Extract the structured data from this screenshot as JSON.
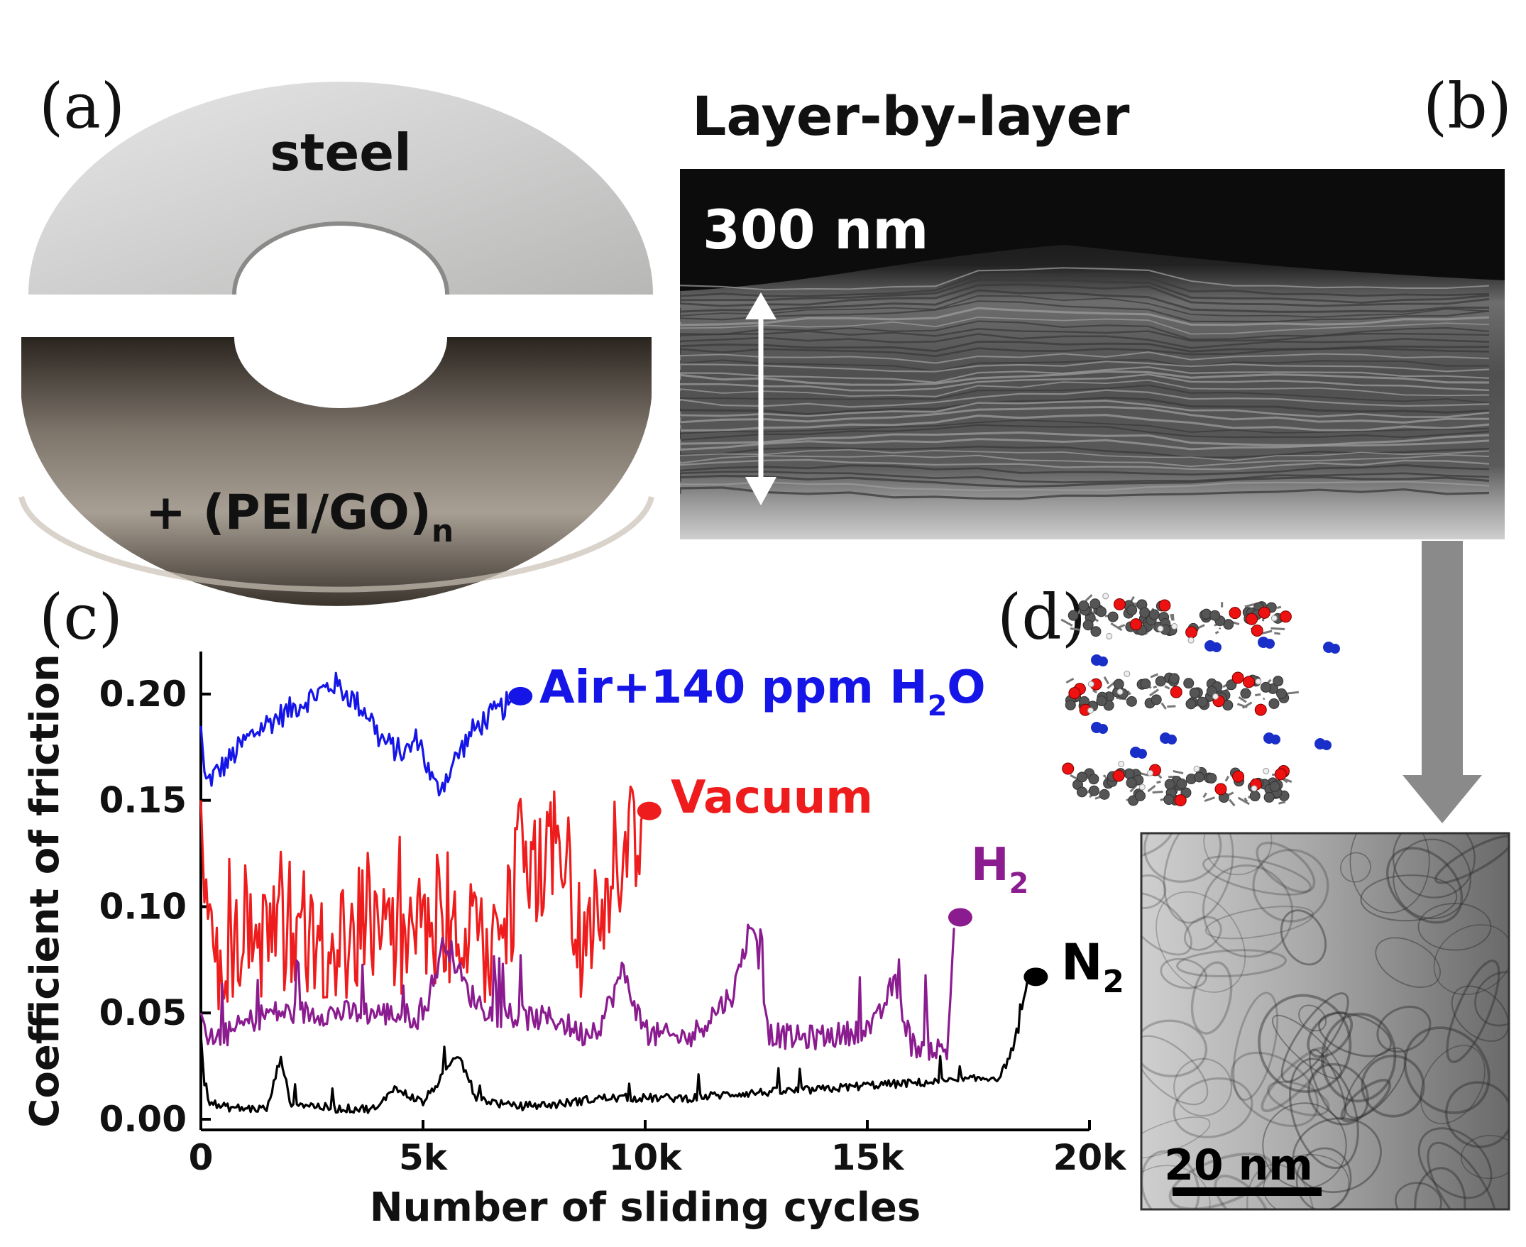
{
  "panels": {
    "a": {
      "letter": "(a)",
      "top_label": "steel",
      "bottom_label_main": "+ (PEI/GO)",
      "bottom_label_sub": "n"
    },
    "b": {
      "letter": "(b)",
      "title": "Layer-by-layer",
      "scale_label": "300 nm"
    },
    "c": {
      "letter": "(c)"
    },
    "d": {
      "letter": "(d)",
      "scale_label": "20 nm"
    }
  },
  "colors": {
    "air": "#1515e8",
    "vacuum": "#ee1c1c",
    "h2": "#8b1c90",
    "n2": "#000000"
  },
  "chart_data": {
    "type": "line",
    "xlabel": "Number of sliding cycles",
    "ylabel": "Coefficient of friction",
    "xlim": [
      0,
      20000
    ],
    "ylim": [
      -0.005,
      0.22
    ],
    "xticks": [
      0,
      5000,
      10000,
      15000,
      20000
    ],
    "xtick_labels": [
      "0",
      "5k",
      "10k",
      "15k",
      "20k"
    ],
    "yticks": [
      0.0,
      0.05,
      0.1,
      0.15,
      0.2
    ],
    "ytick_labels": [
      "0.00",
      "0.05",
      "0.10",
      "0.15",
      "0.20"
    ],
    "grid": false,
    "series": [
      {
        "key": "air",
        "name_main": "Air+140 ppm H",
        "name_sub": "2",
        "name_tail": "O",
        "end_marker": [
          7000,
          0.199
        ],
        "points": [
          [
            0,
            0.185
          ],
          [
            100,
            0.158
          ],
          [
            300,
            0.162
          ],
          [
            600,
            0.168
          ],
          [
            1000,
            0.178
          ],
          [
            1400,
            0.185
          ],
          [
            1800,
            0.19
          ],
          [
            2200,
            0.195
          ],
          [
            2600,
            0.2
          ],
          [
            3000,
            0.205
          ],
          [
            3400,
            0.198
          ],
          [
            3800,
            0.19
          ],
          [
            4000,
            0.18
          ],
          [
            4300,
            0.175
          ],
          [
            4600,
            0.172
          ],
          [
            4900,
            0.18
          ],
          [
            5100,
            0.165
          ],
          [
            5300,
            0.155
          ],
          [
            5500,
            0.16
          ],
          [
            5800,
            0.172
          ],
          [
            6100,
            0.182
          ],
          [
            6400,
            0.188
          ],
          [
            6700,
            0.192
          ],
          [
            7000,
            0.197
          ]
        ]
      },
      {
        "key": "vacuum",
        "name_main": "Vacuum",
        "end_marker": [
          9900,
          0.145
        ],
        "points": [
          [
            0,
            0.15
          ],
          [
            100,
            0.09
          ],
          [
            400,
            0.075
          ],
          [
            800,
            0.08
          ],
          [
            1500,
            0.085
          ],
          [
            2000,
            0.08
          ],
          [
            2500,
            0.088
          ],
          [
            3000,
            0.082
          ],
          [
            3500,
            0.085
          ],
          [
            4000,
            0.085
          ],
          [
            4500,
            0.08
          ],
          [
            5000,
            0.083
          ],
          [
            5500,
            0.078
          ],
          [
            6000,
            0.085
          ],
          [
            6500,
            0.08
          ],
          [
            6800,
            0.087
          ],
          [
            7200,
            0.115
          ],
          [
            7600,
            0.12
          ],
          [
            8000,
            0.13
          ],
          [
            8300,
            0.1
          ],
          [
            8600,
            0.08
          ],
          [
            8900,
            0.09
          ],
          [
            9200,
            0.11
          ],
          [
            9500,
            0.125
          ],
          [
            9800,
            0.135
          ],
          [
            9950,
            0.143
          ]
        ]
      },
      {
        "key": "h2",
        "name_main": "H",
        "name_sub": "2",
        "end_marker": [
          16900,
          0.095
        ],
        "points": [
          [
            0,
            0.05
          ],
          [
            200,
            0.037
          ],
          [
            600,
            0.04
          ],
          [
            1000,
            0.045
          ],
          [
            1500,
            0.05
          ],
          [
            2000,
            0.05
          ],
          [
            3000,
            0.05
          ],
          [
            4000,
            0.05
          ],
          [
            5000,
            0.048
          ],
          [
            5500,
            0.085
          ],
          [
            6000,
            0.06
          ],
          [
            6500,
            0.05
          ],
          [
            7000,
            0.048
          ],
          [
            8000,
            0.047
          ],
          [
            8600,
            0.04
          ],
          [
            9000,
            0.045
          ],
          [
            9500,
            0.07
          ],
          [
            10000,
            0.04
          ],
          [
            11000,
            0.038
          ],
          [
            12000,
            0.06
          ],
          [
            12400,
            0.095
          ],
          [
            12800,
            0.04
          ],
          [
            13500,
            0.038
          ],
          [
            14500,
            0.04
          ],
          [
            15200,
            0.045
          ],
          [
            15600,
            0.065
          ],
          [
            16000,
            0.035
          ],
          [
            16800,
            0.032
          ],
          [
            16950,
            0.09
          ]
        ]
      },
      {
        "key": "n2",
        "name_main": "N",
        "name_sub": "2",
        "end_marker": [
          18600,
          0.067
        ],
        "points": [
          [
            0,
            0.04
          ],
          [
            100,
            0.01
          ],
          [
            400,
            0.006
          ],
          [
            1000,
            0.005
          ],
          [
            1500,
            0.005
          ],
          [
            1800,
            0.03
          ],
          [
            2000,
            0.008
          ],
          [
            3000,
            0.005
          ],
          [
            4000,
            0.005
          ],
          [
            4300,
            0.015
          ],
          [
            5000,
            0.008
          ],
          [
            5800,
            0.03
          ],
          [
            6200,
            0.01
          ],
          [
            7000,
            0.006
          ],
          [
            8000,
            0.007
          ],
          [
            9000,
            0.01
          ],
          [
            10000,
            0.01
          ],
          [
            11000,
            0.01
          ],
          [
            12000,
            0.012
          ],
          [
            13000,
            0.013
          ],
          [
            14000,
            0.014
          ],
          [
            15000,
            0.016
          ],
          [
            16000,
            0.017
          ],
          [
            17000,
            0.018
          ],
          [
            18000,
            0.02
          ],
          [
            18400,
            0.04
          ],
          [
            18600,
            0.065
          ]
        ]
      }
    ]
  }
}
